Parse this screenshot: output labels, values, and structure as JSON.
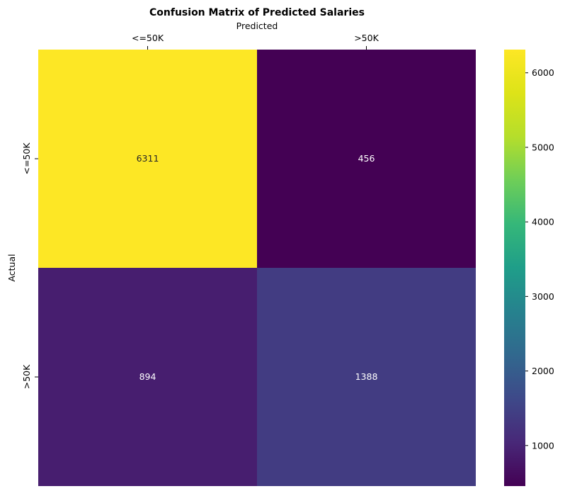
{
  "chart_data": {
    "type": "heatmap",
    "title": "Confusion Matrix of Predicted Salaries",
    "xlabel": "Predicted",
    "ylabel": "Actual",
    "x_categories": [
      "<=50K",
      ">50K"
    ],
    "y_categories": [
      "<=50K",
      ">50K"
    ],
    "values": [
      [
        6311,
        456
      ],
      [
        894,
        1388
      ]
    ],
    "colormap": "viridis",
    "x_axis_position": "top",
    "colorbar": {
      "ticks": [
        1000,
        2000,
        3000,
        4000,
        5000,
        6000
      ],
      "range": [
        456,
        6311
      ]
    }
  }
}
